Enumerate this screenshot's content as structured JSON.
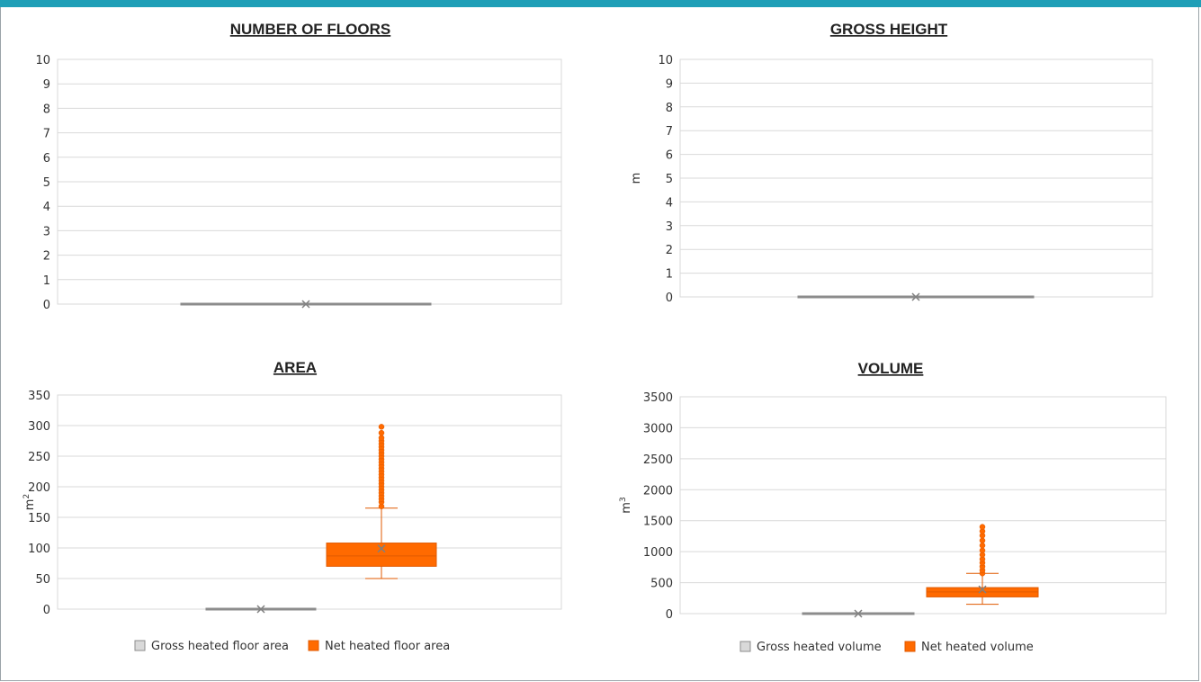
{
  "colors": {
    "header_bar": "#1f9fb7",
    "gross_fill": "#d9d9d9",
    "gross_stroke": "#8c8c8c",
    "net_fill": "#ff6a00",
    "net_stroke": "#e05a00",
    "grid": "#d9d9d9",
    "mean_marker": "#808080"
  },
  "chart_data": [
    {
      "id": "floors",
      "type": "box",
      "title": "NUMBER OF FLOORS",
      "ylabel": "",
      "ylim": [
        0,
        10
      ],
      "yticks": [
        "0",
        "1",
        "2",
        "3",
        "4",
        "5",
        "6",
        "7",
        "8",
        "9",
        "10"
      ],
      "legend": [],
      "series": [
        {
          "name": "",
          "color": "gross",
          "min": 0,
          "q1": 0,
          "median": 0,
          "q3": 0,
          "max": 0,
          "mean": 0,
          "outliers": []
        }
      ]
    },
    {
      "id": "height",
      "type": "box",
      "title": "GROSS HEIGHT",
      "ylabel": "m",
      "ylim": [
        0,
        10
      ],
      "yticks": [
        "0",
        "1",
        "2",
        "3",
        "4",
        "5",
        "6",
        "7",
        "8",
        "9",
        "10"
      ],
      "legend": [],
      "series": [
        {
          "name": "",
          "color": "gross",
          "min": 0,
          "q1": 0,
          "median": 0,
          "q3": 0,
          "max": 0,
          "mean": 0,
          "outliers": []
        }
      ]
    },
    {
      "id": "area",
      "type": "box",
      "title": "AREA",
      "ylabel": "m",
      "ylabel_sup": "2",
      "ylim": [
        0,
        350
      ],
      "yticks": [
        "0",
        "50",
        "100",
        "150",
        "200",
        "250",
        "300",
        "350"
      ],
      "legend": [
        "Gross heated floor area",
        "Net heated floor area"
      ],
      "series": [
        {
          "name": "Gross heated floor area",
          "color": "gross",
          "min": 0,
          "q1": 0,
          "median": 0,
          "q3": 0,
          "max": 0,
          "mean": 0,
          "outliers": []
        },
        {
          "name": "Net heated floor area",
          "color": "net",
          "min": 50,
          "q1": 70,
          "median": 87,
          "q3": 108,
          "max": 165,
          "mean": 99,
          "outliers": [
            168,
            175,
            180,
            185,
            190,
            195,
            200,
            205,
            210,
            215,
            220,
            225,
            230,
            235,
            240,
            245,
            250,
            255,
            260,
            265,
            270,
            275,
            280,
            288,
            298
          ]
        }
      ]
    },
    {
      "id": "volume",
      "type": "box",
      "title": "VOLUME",
      "ylabel": "m",
      "ylabel_sup": "3",
      "ylim": [
        0,
        3500
      ],
      "yticks": [
        "0",
        "500",
        "1000",
        "1500",
        "2000",
        "2500",
        "3000",
        "3500"
      ],
      "legend": [
        "Gross heated volume",
        "Net heated volume"
      ],
      "series": [
        {
          "name": "Gross heated volume",
          "color": "gross",
          "min": 0,
          "q1": 0,
          "median": 0,
          "q3": 0,
          "max": 0,
          "mean": 0,
          "outliers": []
        },
        {
          "name": "Net heated volume",
          "color": "net",
          "min": 150,
          "q1": 270,
          "median": 350,
          "q3": 420,
          "max": 650,
          "mean": 390,
          "outliers": [
            650,
            700,
            760,
            820,
            880,
            950,
            1020,
            1100,
            1180,
            1260,
            1330,
            1400
          ]
        }
      ]
    }
  ]
}
